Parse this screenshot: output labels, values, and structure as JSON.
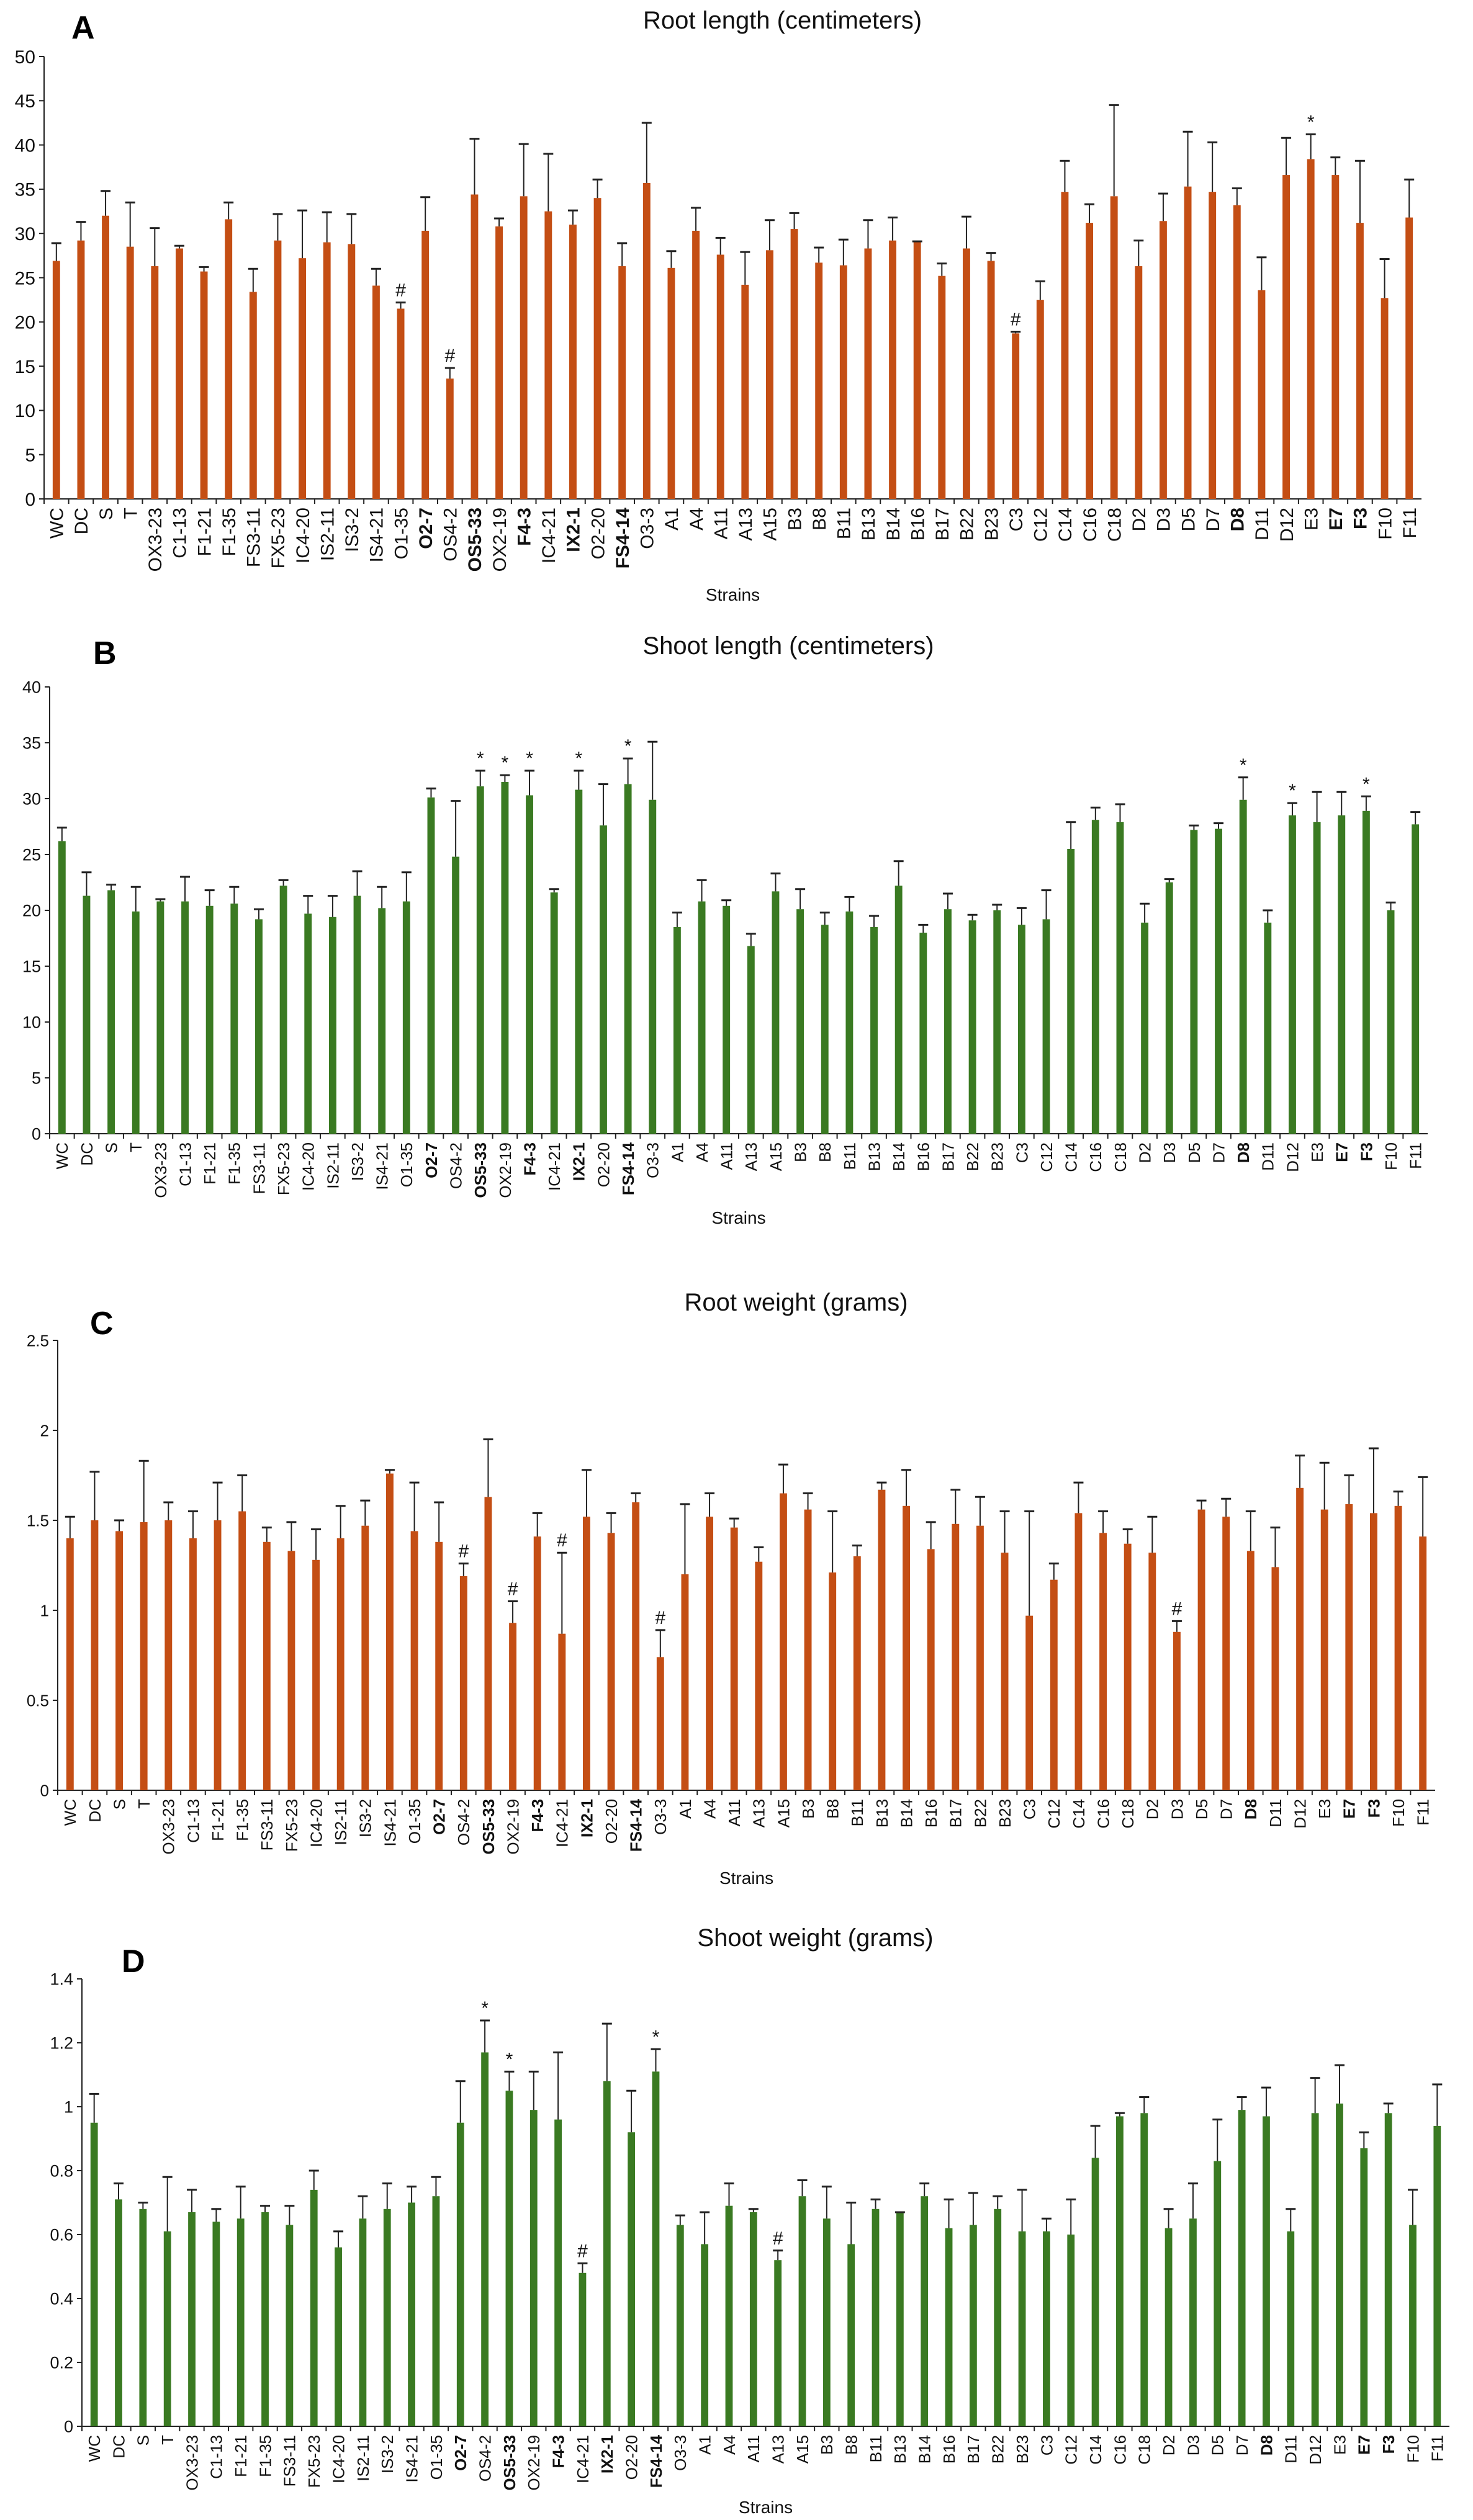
{
  "chart_data": [
    {
      "panel": "A",
      "type": "bar",
      "title": "Root length (centimeters)",
      "xlabel": "Strains",
      "ylabel": "",
      "ylim": [
        0,
        50
      ],
      "yticks": [
        0,
        5,
        10,
        15,
        20,
        25,
        30,
        35,
        40,
        45,
        50
      ],
      "color": "#c44e14",
      "categories": [
        "WC",
        "DC",
        "S",
        "T",
        "OX3-23",
        "C1-13",
        "F1-21",
        "F1-35",
        "FS3-11",
        "FX5-23",
        "IC4-20",
        "IS2-11",
        "IS3-2",
        "IS4-21",
        "O1-35",
        "O2-7",
        "OS4-2",
        "OS5-33",
        "OX2-19",
        "F4-3",
        "IC4-21",
        "IX2-1",
        "O2-20",
        "FS4-14",
        "O3-3",
        "A1",
        "A4",
        "A11",
        "A13",
        "A15",
        "B3",
        "B8",
        "B11",
        "B13",
        "B14",
        "B16",
        "B17",
        "B22",
        "B23",
        "C3",
        "C12",
        "C14",
        "C16",
        "C18",
        "D2",
        "D3",
        "D5",
        "D7",
        "D8",
        "D11",
        "D12",
        "E3",
        "E7",
        "F3",
        "F10",
        "F11"
      ],
      "bold_categories": [
        "O2-7",
        "OS5-33",
        "F4-3",
        "IX2-1",
        "FS4-14",
        "D8",
        "E7",
        "F3"
      ],
      "values": [
        26.9,
        29.2,
        32.0,
        28.5,
        26.3,
        28.3,
        25.7,
        31.6,
        23.4,
        29.2,
        27.2,
        29.0,
        28.8,
        24.1,
        21.5,
        30.3,
        13.6,
        34.4,
        30.8,
        34.2,
        32.5,
        31.0,
        34.0,
        26.3,
        35.7,
        26.1,
        30.3,
        27.6,
        24.2,
        28.1,
        30.5,
        26.7,
        26.4,
        28.3,
        29.2,
        29.0,
        25.2,
        28.3,
        26.9,
        18.7,
        22.5,
        34.7,
        31.2,
        34.2,
        26.3,
        31.4,
        35.3,
        34.7,
        33.2,
        23.6,
        36.6,
        38.4,
        36.6,
        31.2,
        22.7,
        31.8
      ],
      "error_top": [
        28.9,
        31.3,
        34.8,
        33.5,
        30.6,
        28.6,
        26.2,
        33.5,
        26.0,
        32.2,
        32.6,
        32.4,
        32.2,
        26.0,
        22.2,
        34.1,
        14.8,
        40.7,
        31.7,
        40.1,
        39.0,
        32.6,
        36.1,
        28.9,
        42.5,
        28.0,
        32.9,
        29.5,
        27.9,
        31.5,
        32.3,
        28.4,
        29.3,
        31.5,
        31.8,
        29.1,
        26.6,
        31.9,
        27.8,
        18.9,
        24.6,
        38.2,
        33.3,
        44.5,
        29.2,
        34.5,
        41.5,
        40.3,
        35.1,
        27.3,
        40.8,
        41.2,
        38.6,
        38.2,
        27.1,
        36.1
      ],
      "annotations": [
        {
          "strain": "O1-35",
          "mark": "#"
        },
        {
          "strain": "OS4-2",
          "mark": "#"
        },
        {
          "strain": "C3",
          "mark": "#"
        },
        {
          "strain": "E3",
          "mark": "*"
        }
      ]
    },
    {
      "panel": "B",
      "type": "bar",
      "title": "Shoot length (centimeters)",
      "xlabel": "Strains",
      "ylabel": "",
      "ylim": [
        0,
        40
      ],
      "yticks": [
        0,
        5,
        10,
        15,
        20,
        25,
        30,
        35,
        40
      ],
      "color": "#3a7a22",
      "categories": [
        "WC",
        "DC",
        "S",
        "T",
        "OX3-23",
        "C1-13",
        "F1-21",
        "F1-35",
        "FS3-11",
        "FX5-23",
        "IC4-20",
        "IS2-11",
        "IS3-2",
        "IS4-21",
        "O1-35",
        "O2-7",
        "OS4-2",
        "OS5-33",
        "OX2-19",
        "F4-3",
        "IC4-21",
        "IX2-1",
        "O2-20",
        "FS4-14",
        "O3-3",
        "A1",
        "A4",
        "A11",
        "A13",
        "A15",
        "B3",
        "B8",
        "B11",
        "B13",
        "B14",
        "B16",
        "B17",
        "B22",
        "B23",
        "C3",
        "C12",
        "C14",
        "C16",
        "C18",
        "D2",
        "D3",
        "D5",
        "D7",
        "D8",
        "D11",
        "D12",
        "E3",
        "E7",
        "F3",
        "F10",
        "F11"
      ],
      "bold_categories": [
        "O2-7",
        "OS5-33",
        "F4-3",
        "IX2-1",
        "FS4-14",
        "D8",
        "E7",
        "F3"
      ],
      "values": [
        26.2,
        21.3,
        21.8,
        19.9,
        20.8,
        20.8,
        20.4,
        20.6,
        19.2,
        22.2,
        19.7,
        19.4,
        21.3,
        20.2,
        20.8,
        30.1,
        24.8,
        31.1,
        31.5,
        30.3,
        21.6,
        30.8,
        27.6,
        31.3,
        29.9,
        18.5,
        20.8,
        20.4,
        16.8,
        21.7,
        20.1,
        18.7,
        19.9,
        18.5,
        22.2,
        18.0,
        20.1,
        19.1,
        20.0,
        18.7,
        19.2,
        25.5,
        28.1,
        27.9,
        18.9,
        22.5,
        27.2,
        27.3,
        29.9,
        18.9,
        28.5,
        27.9,
        28.5,
        28.9,
        20.0,
        27.7
      ],
      "error_top": [
        27.4,
        23.4,
        22.3,
        22.1,
        21.0,
        23.0,
        21.8,
        22.1,
        20.1,
        22.7,
        21.3,
        21.3,
        23.5,
        22.1,
        23.4,
        30.9,
        29.8,
        32.5,
        32.1,
        32.5,
        21.9,
        32.5,
        31.3,
        33.6,
        35.1,
        19.8,
        22.7,
        20.9,
        17.9,
        23.3,
        21.9,
        19.8,
        21.2,
        19.5,
        24.4,
        18.7,
        21.5,
        19.6,
        20.5,
        20.2,
        21.8,
        27.9,
        29.2,
        29.5,
        20.6,
        22.8,
        27.6,
        27.8,
        31.9,
        20.0,
        29.6,
        30.6,
        30.6,
        30.2,
        20.7,
        28.8
      ],
      "annotations": [
        {
          "strain": "OS5-33",
          "mark": "*"
        },
        {
          "strain": "OX2-19",
          "mark": "*"
        },
        {
          "strain": "F4-3",
          "mark": "*"
        },
        {
          "strain": "IX2-1",
          "mark": "*"
        },
        {
          "strain": "FS4-14",
          "mark": "*"
        },
        {
          "strain": "D8",
          "mark": "*"
        },
        {
          "strain": "D12",
          "mark": "*"
        },
        {
          "strain": "F3",
          "mark": "*"
        }
      ]
    },
    {
      "panel": "C",
      "type": "bar",
      "title": "Root weight (grams)",
      "xlabel": "Strains",
      "ylabel": "",
      "ylim": [
        0,
        2.5
      ],
      "yticks": [
        0,
        0.5,
        1,
        1.5,
        2,
        2.5
      ],
      "color": "#c44e14",
      "categories": [
        "WC",
        "DC",
        "S",
        "T",
        "OX3-23",
        "C1-13",
        "F1-21",
        "F1-35",
        "FS3-11",
        "FX5-23",
        "IC4-20",
        "IS2-11",
        "IS3-2",
        "IS4-21",
        "O1-35",
        "O2-7",
        "OS4-2",
        "OS5-33",
        "OX2-19",
        "F4-3",
        "IC4-21",
        "IX2-1",
        "O2-20",
        "FS4-14",
        "O3-3",
        "A1",
        "A4",
        "A11",
        "A13",
        "A15",
        "B3",
        "B8",
        "B11",
        "B13",
        "B14",
        "B16",
        "B17",
        "B22",
        "B23",
        "C3",
        "C12",
        "C14",
        "C16",
        "C18",
        "D2",
        "D3",
        "D5",
        "D7",
        "D8",
        "D11",
        "D12",
        "E3",
        "E7",
        "F3",
        "F10",
        "F11"
      ],
      "bold_categories": [
        "O2-7",
        "OS5-33",
        "F4-3",
        "IX2-1",
        "FS4-14",
        "D8",
        "E7",
        "F3"
      ],
      "values": [
        1.4,
        1.5,
        1.44,
        1.49,
        1.5,
        1.4,
        1.5,
        1.55,
        1.38,
        1.33,
        1.28,
        1.4,
        1.47,
        1.76,
        1.44,
        1.38,
        1.19,
        1.63,
        0.93,
        1.41,
        0.87,
        1.52,
        1.43,
        1.6,
        0.74,
        1.2,
        1.52,
        1.46,
        1.27,
        1.65,
        1.56,
        1.21,
        1.3,
        1.67,
        1.58,
        1.34,
        1.48,
        1.47,
        1.32,
        0.97,
        1.17,
        1.54,
        1.43,
        1.37,
        1.32,
        0.88,
        1.56,
        1.52,
        1.33,
        1.24,
        1.68,
        1.56,
        1.59,
        1.54,
        1.58,
        1.41
      ],
      "error_top": [
        1.52,
        1.77,
        1.5,
        1.83,
        1.6,
        1.55,
        1.71,
        1.75,
        1.46,
        1.49,
        1.45,
        1.58,
        1.61,
        1.78,
        1.71,
        1.6,
        1.26,
        1.95,
        1.05,
        1.54,
        1.32,
        1.78,
        1.54,
        1.65,
        0.89,
        1.59,
        1.65,
        1.51,
        1.35,
        1.81,
        1.65,
        1.55,
        1.36,
        1.71,
        1.78,
        1.49,
        1.67,
        1.63,
        1.55,
        1.55,
        1.26,
        1.71,
        1.55,
        1.45,
        1.52,
        0.94,
        1.61,
        1.62,
        1.55,
        1.46,
        1.86,
        1.82,
        1.75,
        1.9,
        1.66,
        1.74
      ],
      "annotations": [
        {
          "strain": "OS4-2",
          "mark": "#"
        },
        {
          "strain": "OX2-19",
          "mark": "#"
        },
        {
          "strain": "IC4-21",
          "mark": "#"
        },
        {
          "strain": "O3-3",
          "mark": "#"
        },
        {
          "strain": "D3",
          "mark": "#"
        }
      ]
    },
    {
      "panel": "D",
      "type": "bar",
      "title": "Shoot weight (grams)",
      "xlabel": "Strains",
      "ylabel": "",
      "ylim": [
        0,
        1.4
      ],
      "yticks": [
        0,
        0.2,
        0.4,
        0.6,
        0.8,
        1,
        1.2,
        1.4
      ],
      "color": "#3a7a22",
      "categories": [
        "WC",
        "DC",
        "S",
        "T",
        "OX3-23",
        "C1-13",
        "F1-21",
        "F1-35",
        "FS3-11",
        "FX5-23",
        "IC4-20",
        "IS2-11",
        "IS3-2",
        "IS4-21",
        "O1-35",
        "O2-7",
        "OS4-2",
        "OS5-33",
        "OX2-19",
        "F4-3",
        "IC4-21",
        "IX2-1",
        "O2-20",
        "FS4-14",
        "O3-3",
        "A1",
        "A4",
        "A11",
        "A13",
        "A15",
        "B3",
        "B8",
        "B11",
        "B13",
        "B14",
        "B16",
        "B17",
        "B22",
        "B23",
        "C3",
        "C12",
        "C14",
        "C16",
        "C18",
        "D2",
        "D3",
        "D5",
        "D7",
        "D8",
        "D11",
        "D12",
        "E3",
        "E7",
        "F3",
        "F10",
        "F11"
      ],
      "bold_categories": [
        "O2-7",
        "OS5-33",
        "F4-3",
        "IX2-1",
        "FS4-14",
        "D8",
        "E7",
        "F3"
      ],
      "values": [
        0.95,
        0.71,
        0.68,
        0.61,
        0.67,
        0.64,
        0.65,
        0.67,
        0.63,
        0.74,
        0.56,
        0.65,
        0.68,
        0.7,
        0.72,
        0.95,
        1.17,
        1.05,
        0.99,
        0.96,
        0.48,
        1.08,
        0.92,
        1.11,
        0.63,
        0.57,
        0.69,
        0.67,
        0.52,
        0.72,
        0.65,
        0.57,
        0.68,
        0.67,
        0.72,
        0.62,
        0.63,
        0.68,
        0.61,
        0.61,
        0.6,
        0.84,
        0.97,
        0.98,
        0.62,
        0.65,
        0.83,
        0.99,
        0.97,
        0.61,
        0.98,
        1.01,
        0.87,
        0.98,
        0.63,
        0.94
      ],
      "error_top": [
        1.04,
        0.76,
        0.7,
        0.78,
        0.74,
        0.68,
        0.75,
        0.69,
        0.69,
        0.8,
        0.61,
        0.72,
        0.76,
        0.75,
        0.78,
        1.08,
        1.27,
        1.11,
        1.11,
        1.17,
        0.51,
        1.26,
        1.05,
        1.18,
        0.66,
        0.67,
        0.76,
        0.68,
        0.55,
        0.77,
        0.75,
        0.7,
        0.71,
        0.67,
        0.76,
        0.71,
        0.73,
        0.72,
        0.74,
        0.65,
        0.71,
        0.94,
        0.98,
        1.03,
        0.68,
        0.76,
        0.96,
        1.03,
        1.06,
        0.68,
        1.09,
        1.13,
        0.92,
        1.01,
        0.74,
        1.07
      ],
      "annotations": [
        {
          "strain": "OS4-2",
          "mark": "*"
        },
        {
          "strain": "OS5-33",
          "mark": "*"
        },
        {
          "strain": "FS4-14",
          "mark": "*"
        },
        {
          "strain": "IC4-21",
          "mark": "#"
        },
        {
          "strain": "A13",
          "mark": "#"
        }
      ]
    }
  ]
}
